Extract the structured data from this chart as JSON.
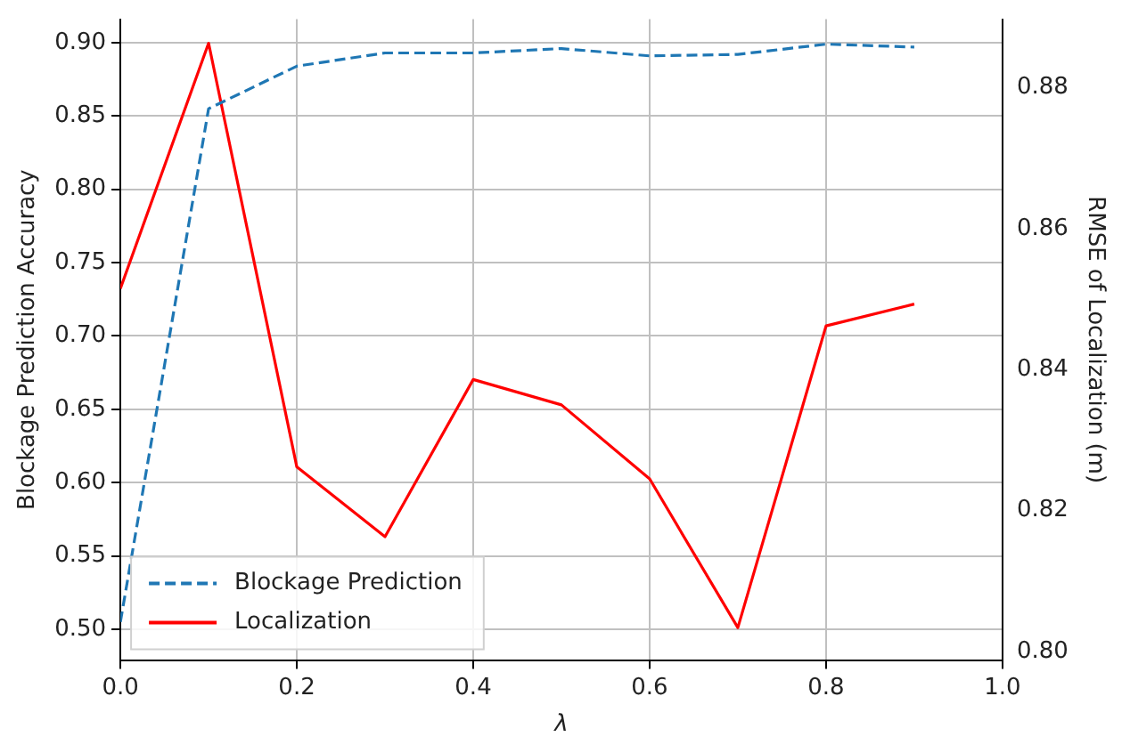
{
  "chart_data": {
    "type": "line",
    "xlabel": "λ",
    "ylabel": "Blockage Prediction Accuracy",
    "y2label": "RMSE of Localization (m)",
    "x": [
      0,
      0.1,
      0.2,
      0.3,
      0.4,
      0.5,
      0.6,
      0.7,
      0.8,
      0.9
    ],
    "series": [
      {
        "name": "Blockage Prediction",
        "color": "#1f77b4",
        "line_style": "dashed",
        "values": [
          0.505,
          0.855,
          0.884,
          0.893,
          0.893,
          0.896,
          0.891,
          0.892,
          0.899,
          0.897
        ]
      },
      {
        "name": "Localization",
        "color": "#ff0000",
        "line_style": "solid",
        "axis": "y2",
        "values": [
          0.8515,
          0.8863,
          0.8262,
          0.8163,
          0.8386,
          0.835,
          0.8245,
          0.8034,
          0.8462,
          0.8493
        ]
      }
    ],
    "xlim": [
      0,
      1
    ],
    "xticks": [
      {
        "value": 0,
        "label": "0.0"
      },
      0.2,
      0.4,
      0.6,
      0.8,
      {
        "value": 1,
        "label": "1.0"
      }
    ],
    "ylim": [
      0.479,
      0.916
    ],
    "yticks": [
      {
        "value": 0.5,
        "label": "0.50"
      },
      0.55,
      {
        "value": 0.6,
        "label": "0.60"
      },
      0.65,
      {
        "value": 0.7,
        "label": "0.70"
      },
      0.75,
      {
        "value": 0.8,
        "label": "0.80"
      },
      0.85,
      {
        "value": 0.9,
        "label": "0.90"
      }
    ],
    "y2lim": [
      0.7988,
      0.8897
    ],
    "y2ticks": [
      {
        "value": 0.8,
        "label": "0.80"
      },
      0.82,
      0.84,
      0.86,
      0.88
    ],
    "grid": true,
    "legend": "bottom left",
    "marker": "none"
  }
}
